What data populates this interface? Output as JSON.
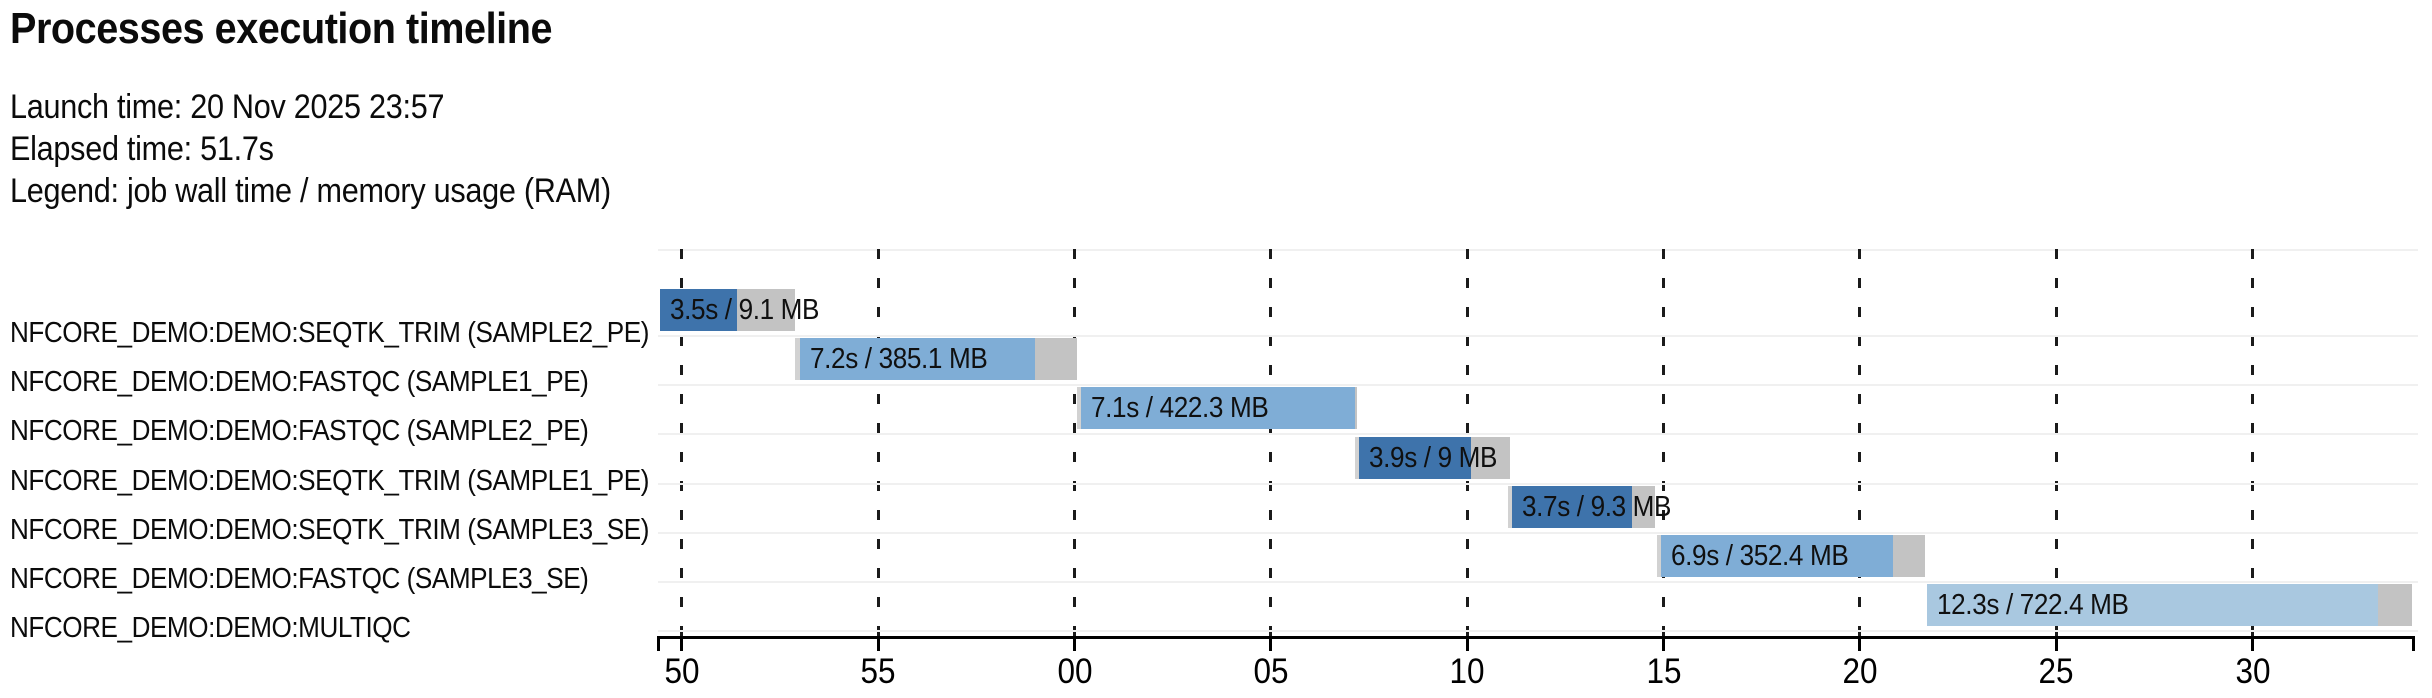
{
  "header": {
    "title": "Processes execution timeline",
    "launch_line": "Launch time: 20 Nov 2025 23:57",
    "elapsed_line": "Elapsed time: 51.7s",
    "legend_line": "Legend: job wall time / memory usage (RAM)"
  },
  "chart_data": {
    "type": "timeline",
    "title": "Processes execution timeline",
    "legend": "job wall time / memory usage (RAM)",
    "axis": {
      "unit": "seconds (clock, from 23:57:50 to 23:58:30)",
      "time_min": 49.44,
      "time_max": 94.06,
      "ticks": [
        {
          "t": 50,
          "label": "50"
        },
        {
          "t": 55,
          "label": "55"
        },
        {
          "t": 60,
          "label": "00"
        },
        {
          "t": 65,
          "label": "05"
        },
        {
          "t": 70,
          "label": "10"
        },
        {
          "t": 75,
          "label": "15"
        },
        {
          "t": 80,
          "label": "20"
        },
        {
          "t": 85,
          "label": "25"
        },
        {
          "t": 90,
          "label": "30"
        }
      ],
      "grid": "dashed-vertical"
    },
    "colors": {
      "dark_blue": "#3e73ab",
      "medium_blue": "#7fadd6",
      "light_blue": "#a9c8e0",
      "tail_gray": "#c3c3c3",
      "lead_gray": "#d2d2d2",
      "separator": "#f0f0f0",
      "axis": "#000000"
    },
    "processes": [
      {
        "name": "NFCORE_DEMO:DEMO:SEQTK_TRIM (SAMPLE2_PE)",
        "value_label": "3.5s / 9.1 MB",
        "start": 49.44,
        "pre": 0,
        "run": 1.96,
        "post": 1.48,
        "shade": "dark_blue"
      },
      {
        "name": "NFCORE_DEMO:DEMO:FASTQC (SAMPLE1_PE)",
        "value_label": "7.2s / 385.1 MB",
        "start": 52.88,
        "pre": 0.13,
        "run": 5.99,
        "post": 1.07,
        "shade": "medium_blue"
      },
      {
        "name": "NFCORE_DEMO:DEMO:FASTQC (SAMPLE2_PE)",
        "value_label": "7.1s / 422.3 MB",
        "start": 60.06,
        "pre": 0.1,
        "run": 6.98,
        "post": 0.05,
        "shade": "medium_blue"
      },
      {
        "name": "NFCORE_DEMO:DEMO:SEQTK_TRIM (SAMPLE1_PE)",
        "value_label": "3.9s / 9 MB",
        "start": 67.14,
        "pre": 0.1,
        "run": 2.85,
        "post": 0.99,
        "shade": "dark_blue"
      },
      {
        "name": "NFCORE_DEMO:DEMO:SEQTK_TRIM (SAMPLE3_SE)",
        "value_label": "3.7s / 9.3 MB",
        "start": 71.04,
        "pre": 0.1,
        "run": 3.06,
        "post": 0.59,
        "shade": "dark_blue"
      },
      {
        "name": "NFCORE_DEMO:DEMO:FASTQC (SAMPLE3_SE)",
        "value_label": "6.9s / 352.4 MB",
        "start": 74.83,
        "pre": 0.1,
        "run": 5.91,
        "post": 0.82,
        "shade": "medium_blue"
      },
      {
        "name": "NFCORE_DEMO:DEMO:MULTIQC",
        "value_label": "12.3s / 722.4 MB",
        "start": 81.71,
        "pre": 0,
        "run": 11.49,
        "post": 0.87,
        "shade": "light_blue"
      }
    ]
  }
}
